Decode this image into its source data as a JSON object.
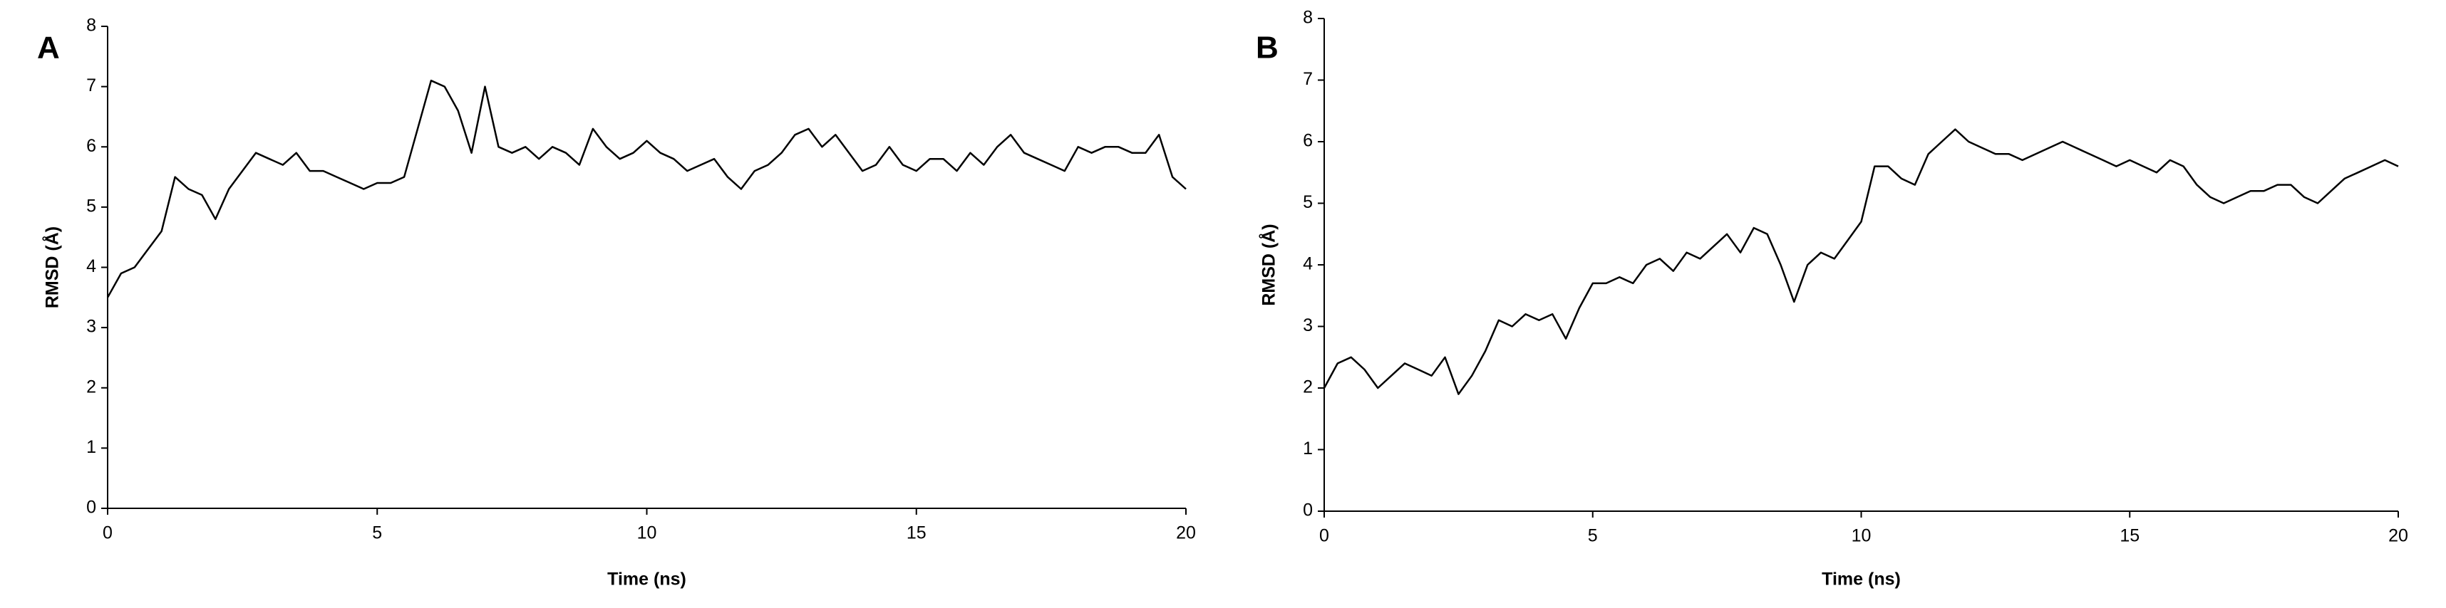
{
  "chart_data": [
    {
      "type": "line",
      "panel_label": "A",
      "x_label": "Time (ns)",
      "y_label": "RMSD (Å)",
      "xlim": [
        0,
        20
      ],
      "xticks": [
        0,
        5,
        10,
        15,
        20
      ],
      "ylim": [
        0,
        8
      ],
      "yticks": [
        0,
        1,
        2,
        3,
        4,
        5,
        6,
        7,
        8
      ],
      "x": [
        0,
        0.25,
        0.5,
        0.75,
        1,
        1.25,
        1.5,
        1.75,
        2,
        2.25,
        2.5,
        2.75,
        3,
        3.25,
        3.5,
        3.75,
        4,
        4.25,
        4.5,
        4.75,
        5,
        5.25,
        5.5,
        5.75,
        6,
        6.25,
        6.5,
        6.75,
        7,
        7.25,
        7.5,
        7.75,
        8,
        8.25,
        8.5,
        8.75,
        9,
        9.25,
        9.5,
        9.75,
        10,
        10.25,
        10.5,
        10.75,
        11,
        11.25,
        11.5,
        11.75,
        12,
        12.25,
        12.5,
        12.75,
        13,
        13.25,
        13.5,
        13.75,
        14,
        14.25,
        14.5,
        14.75,
        15,
        15.25,
        15.5,
        15.75,
        16,
        16.25,
        16.5,
        16.75,
        17,
        17.25,
        17.5,
        17.75,
        18,
        18.25,
        18.5,
        18.75,
        19,
        19.25,
        19.5,
        19.75,
        20
      ],
      "series": [
        {
          "color": "#000000",
          "values": [
            3.5,
            3.9,
            4.0,
            4.3,
            4.6,
            5.5,
            5.3,
            5.2,
            4.8,
            5.3,
            5.6,
            5.9,
            5.8,
            5.7,
            5.9,
            5.6,
            5.6,
            5.5,
            5.4,
            5.3,
            5.4,
            5.4,
            5.5,
            6.3,
            7.1,
            7.0,
            6.6,
            5.9,
            7.0,
            6.0,
            5.9,
            6.0,
            5.8,
            6.0,
            5.9,
            5.7,
            6.3,
            6.0,
            5.8,
            5.9,
            6.1,
            5.9,
            5.8,
            5.6,
            5.7,
            5.8,
            5.5,
            5.3,
            5.6,
            5.7,
            5.9,
            6.2,
            6.3,
            6.0,
            6.2,
            5.9,
            5.6,
            5.7,
            6.0,
            5.7,
            5.6,
            5.8,
            5.8,
            5.6,
            5.9,
            5.7,
            6.0,
            6.2,
            5.9,
            5.8,
            5.7,
            5.6,
            6.0,
            5.9,
            6.0,
            6.0,
            5.9,
            5.9,
            6.2,
            5.5,
            5.3
          ]
        }
      ]
    },
    {
      "type": "line",
      "panel_label": "B",
      "x_label": "Time (ns)",
      "y_label": "RMSD (Å)",
      "xlim": [
        0,
        20
      ],
      "xticks": [
        0,
        5,
        10,
        15,
        20
      ],
      "ylim": [
        0,
        8
      ],
      "yticks": [
        0,
        1,
        2,
        3,
        4,
        5,
        6,
        7,
        8
      ],
      "x": [
        0,
        0.25,
        0.5,
        0.75,
        1,
        1.25,
        1.5,
        1.75,
        2,
        2.25,
        2.5,
        2.75,
        3,
        3.25,
        3.5,
        3.75,
        4,
        4.25,
        4.5,
        4.75,
        5,
        5.25,
        5.5,
        5.75,
        6,
        6.25,
        6.5,
        6.75,
        7,
        7.25,
        7.5,
        7.75,
        8,
        8.25,
        8.5,
        8.75,
        9,
        9.25,
        9.5,
        9.75,
        10,
        10.25,
        10.5,
        10.75,
        11,
        11.25,
        11.5,
        11.75,
        12,
        12.25,
        12.5,
        12.75,
        13,
        13.25,
        13.5,
        13.75,
        14,
        14.25,
        14.5,
        14.75,
        15,
        15.25,
        15.5,
        15.75,
        16,
        16.25,
        16.5,
        16.75,
        17,
        17.25,
        17.5,
        17.75,
        18,
        18.25,
        18.5,
        18.75,
        19,
        19.25,
        19.5,
        19.75,
        20
      ],
      "series": [
        {
          "color": "#000000",
          "values": [
            2.0,
            2.4,
            2.5,
            2.3,
            2.0,
            2.2,
            2.4,
            2.3,
            2.2,
            2.5,
            1.9,
            2.2,
            2.6,
            3.1,
            3.0,
            3.2,
            3.1,
            3.2,
            2.8,
            3.3,
            3.7,
            3.7,
            3.8,
            3.7,
            4.0,
            4.1,
            3.9,
            4.2,
            4.1,
            4.3,
            4.5,
            4.2,
            4.6,
            4.5,
            4.0,
            3.4,
            4.0,
            4.2,
            4.1,
            4.4,
            4.7,
            5.6,
            5.6,
            5.4,
            5.3,
            5.8,
            6.0,
            6.2,
            6.0,
            5.9,
            5.8,
            5.8,
            5.7,
            5.8,
            5.9,
            6.0,
            5.9,
            5.8,
            5.7,
            5.6,
            5.7,
            5.6,
            5.5,
            5.7,
            5.6,
            5.3,
            5.1,
            5.0,
            5.1,
            5.2,
            5.2,
            5.3,
            5.3,
            5.1,
            5.0,
            5.2,
            5.4,
            5.5,
            5.6,
            5.7,
            5.6
          ]
        }
      ]
    }
  ]
}
